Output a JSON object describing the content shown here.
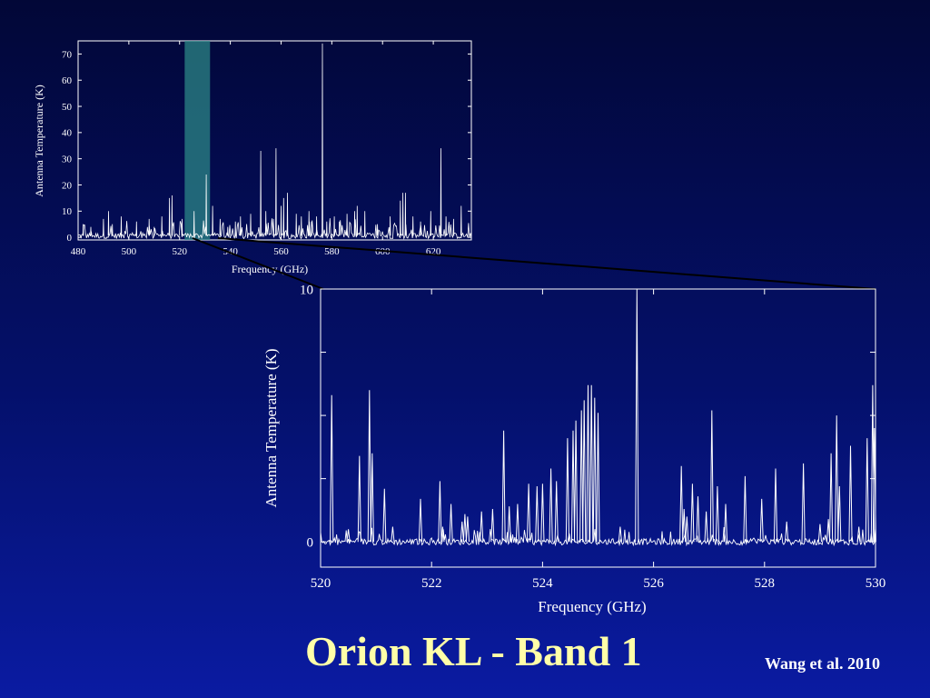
{
  "slide": {
    "title": "Orion KL - Band 1",
    "citation": "Wang et al. 2010"
  },
  "colors": {
    "trace": "#ffffff",
    "highlight": "#2f8f8a",
    "title": "#ffffa8",
    "background_top": "#020737",
    "background_bottom": "#0a1ba2"
  },
  "chart_data": [
    {
      "type": "line",
      "xlabel": "Frequency (GHz)",
      "ylabel": "Antenna Temperature (K)",
      "xlim": [
        480,
        635
      ],
      "ylim": [
        -1,
        75
      ],
      "xticks": [
        480,
        500,
        520,
        540,
        560,
        580,
        600,
        620
      ],
      "yticks": [
        0,
        10,
        20,
        30,
        40,
        50,
        60,
        70
      ],
      "highlight_band": [
        522,
        532
      ],
      "lines": [
        {
          "x": 482,
          "y": 5
        },
        {
          "x": 485,
          "y": 4
        },
        {
          "x": 490,
          "y": 7
        },
        {
          "x": 492,
          "y": 10
        },
        {
          "x": 493.5,
          "y": 5
        },
        {
          "x": 497,
          "y": 8
        },
        {
          "x": 503,
          "y": 6
        },
        {
          "x": 508,
          "y": 7
        },
        {
          "x": 510,
          "y": 4
        },
        {
          "x": 513,
          "y": 8
        },
        {
          "x": 516,
          "y": 15
        },
        {
          "x": 517,
          "y": 16
        },
        {
          "x": 521,
          "y": 7
        },
        {
          "x": 525.7,
          "y": 10
        },
        {
          "x": 530.5,
          "y": 24
        },
        {
          "x": 533,
          "y": 12
        },
        {
          "x": 536,
          "y": 7
        },
        {
          "x": 539,
          "y": 4
        },
        {
          "x": 542,
          "y": 6
        },
        {
          "x": 544,
          "y": 8
        },
        {
          "x": 548,
          "y": 9
        },
        {
          "x": 552,
          "y": 33
        },
        {
          "x": 554,
          "y": 10
        },
        {
          "x": 557,
          "y": 7
        },
        {
          "x": 558,
          "y": 34
        },
        {
          "x": 560,
          "y": 12
        },
        {
          "x": 561,
          "y": 15
        },
        {
          "x": 562.5,
          "y": 17
        },
        {
          "x": 566,
          "y": 9
        },
        {
          "x": 568,
          "y": 8
        },
        {
          "x": 571,
          "y": 10
        },
        {
          "x": 572,
          "y": 6
        },
        {
          "x": 574,
          "y": 8
        },
        {
          "x": 576.3,
          "y": 74
        },
        {
          "x": 578,
          "y": 6
        },
        {
          "x": 581,
          "y": 8
        },
        {
          "x": 583,
          "y": 6
        },
        {
          "x": 586,
          "y": 9
        },
        {
          "x": 589,
          "y": 10
        },
        {
          "x": 590,
          "y": 12
        },
        {
          "x": 593,
          "y": 10
        },
        {
          "x": 598,
          "y": 5
        },
        {
          "x": 603,
          "y": 8
        },
        {
          "x": 607,
          "y": 14
        },
        {
          "x": 608,
          "y": 17
        },
        {
          "x": 609,
          "y": 17
        },
        {
          "x": 612,
          "y": 8
        },
        {
          "x": 615,
          "y": 6
        },
        {
          "x": 619,
          "y": 10
        },
        {
          "x": 623,
          "y": 34
        },
        {
          "x": 625,
          "y": 8
        },
        {
          "x": 628,
          "y": 7
        },
        {
          "x": 631,
          "y": 12
        }
      ]
    },
    {
      "type": "line",
      "xlabel": "Frequency (GHz)",
      "ylabel": "Antenna Temperature (K)",
      "xlim": [
        520,
        530
      ],
      "ylim": [
        -1,
        10
      ],
      "xticks": [
        520,
        522,
        524,
        526,
        528,
        530
      ],
      "yticks_labeled": [
        0,
        10
      ],
      "yticks_minor": [
        2.5,
        5,
        7.5
      ],
      "lines": [
        {
          "x": 520.2,
          "y": 5.8
        },
        {
          "x": 520.5,
          "y": 0.5
        },
        {
          "x": 520.7,
          "y": 3.4
        },
        {
          "x": 520.88,
          "y": 6.0
        },
        {
          "x": 520.93,
          "y": 3.5
        },
        {
          "x": 521.15,
          "y": 2.1
        },
        {
          "x": 521.3,
          "y": 0.6
        },
        {
          "x": 521.8,
          "y": 1.7
        },
        {
          "x": 522.15,
          "y": 2.4
        },
        {
          "x": 522.2,
          "y": 0.6
        },
        {
          "x": 522.35,
          "y": 1.5
        },
        {
          "x": 522.55,
          "y": 0.8
        },
        {
          "x": 522.6,
          "y": 1.1
        },
        {
          "x": 522.65,
          "y": 1.0
        },
        {
          "x": 522.9,
          "y": 1.2
        },
        {
          "x": 523.1,
          "y": 1.3
        },
        {
          "x": 523.3,
          "y": 4.4
        },
        {
          "x": 523.4,
          "y": 1.4
        },
        {
          "x": 523.55,
          "y": 1.5
        },
        {
          "x": 523.75,
          "y": 2.3
        },
        {
          "x": 523.9,
          "y": 2.2
        },
        {
          "x": 524.0,
          "y": 2.3
        },
        {
          "x": 524.15,
          "y": 2.9
        },
        {
          "x": 524.25,
          "y": 2.4
        },
        {
          "x": 524.45,
          "y": 4.1
        },
        {
          "x": 524.55,
          "y": 4.4
        },
        {
          "x": 524.6,
          "y": 4.8
        },
        {
          "x": 524.7,
          "y": 5.2
        },
        {
          "x": 524.75,
          "y": 5.6
        },
        {
          "x": 524.82,
          "y": 6.2
        },
        {
          "x": 524.88,
          "y": 6.2
        },
        {
          "x": 524.94,
          "y": 5.7
        },
        {
          "x": 525.0,
          "y": 5.1
        },
        {
          "x": 525.4,
          "y": 0.6
        },
        {
          "x": 525.7,
          "y": 10.0
        },
        {
          "x": 526.5,
          "y": 3.0
        },
        {
          "x": 526.55,
          "y": 1.3
        },
        {
          "x": 526.6,
          "y": 1.0
        },
        {
          "x": 526.7,
          "y": 2.3
        },
        {
          "x": 526.8,
          "y": 1.8
        },
        {
          "x": 526.95,
          "y": 1.2
        },
        {
          "x": 527.05,
          "y": 5.2
        },
        {
          "x": 527.15,
          "y": 2.2
        },
        {
          "x": 527.3,
          "y": 1.5
        },
        {
          "x": 527.65,
          "y": 2.6
        },
        {
          "x": 527.95,
          "y": 1.7
        },
        {
          "x": 528.2,
          "y": 2.9
        },
        {
          "x": 528.4,
          "y": 0.8
        },
        {
          "x": 528.7,
          "y": 3.1
        },
        {
          "x": 529.0,
          "y": 0.7
        },
        {
          "x": 529.15,
          "y": 0.9
        },
        {
          "x": 529.2,
          "y": 3.5
        },
        {
          "x": 529.3,
          "y": 5.0
        },
        {
          "x": 529.35,
          "y": 2.2
        },
        {
          "x": 529.55,
          "y": 3.8
        },
        {
          "x": 529.7,
          "y": 0.6
        },
        {
          "x": 529.85,
          "y": 4.1
        },
        {
          "x": 529.95,
          "y": 6.2
        },
        {
          "x": 529.98,
          "y": 4.5
        }
      ]
    }
  ]
}
